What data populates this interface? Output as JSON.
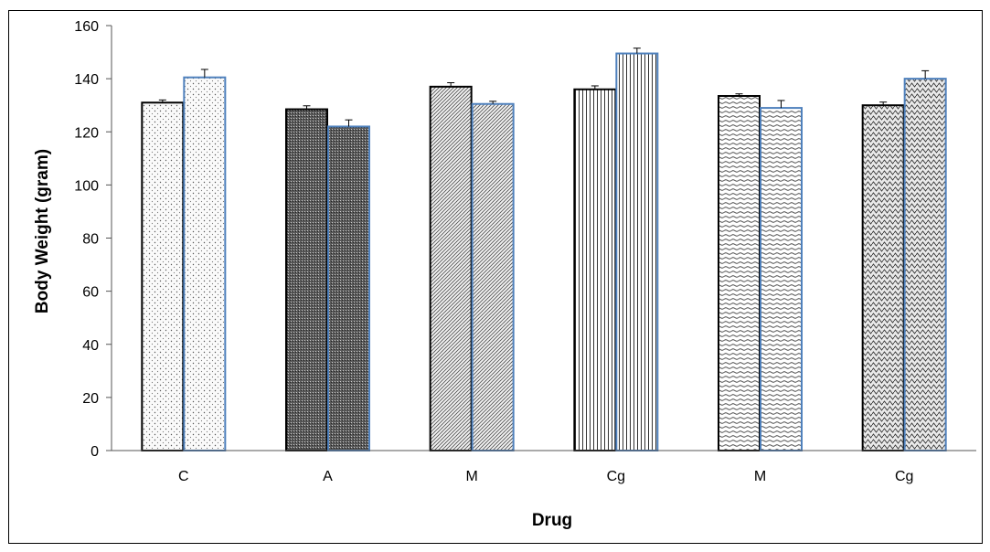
{
  "chart_data": {
    "type": "bar",
    "title": "",
    "xlabel": "Drug",
    "ylabel": "Body Weight (gram)",
    "categories": [
      "C",
      "A",
      "M",
      "Cg",
      "M",
      "Cg"
    ],
    "ylim": [
      0,
      160
    ],
    "yticks": [
      0,
      20,
      40,
      60,
      80,
      100,
      120,
      140,
      160
    ],
    "grid": false,
    "legend": "none",
    "series": [
      {
        "values": [
          131,
          128.5,
          137,
          136,
          133.5,
          130
        ],
        "errors": [
          1,
          1.3,
          1.5,
          1.3,
          0.8,
          1.2
        ],
        "border_color": "#000000"
      },
      {
        "values": [
          140.5,
          122,
          130.5,
          149.5,
          129,
          140
        ],
        "errors": [
          3,
          2.5,
          1,
          2,
          2.8,
          3
        ],
        "border_color": "#4f81bd"
      }
    ],
    "fill_patterns": [
      "dots-sparse",
      "dense-dark",
      "diagonal-fine",
      "vertical-lines",
      "horizontal-wave",
      "zigzag"
    ]
  }
}
